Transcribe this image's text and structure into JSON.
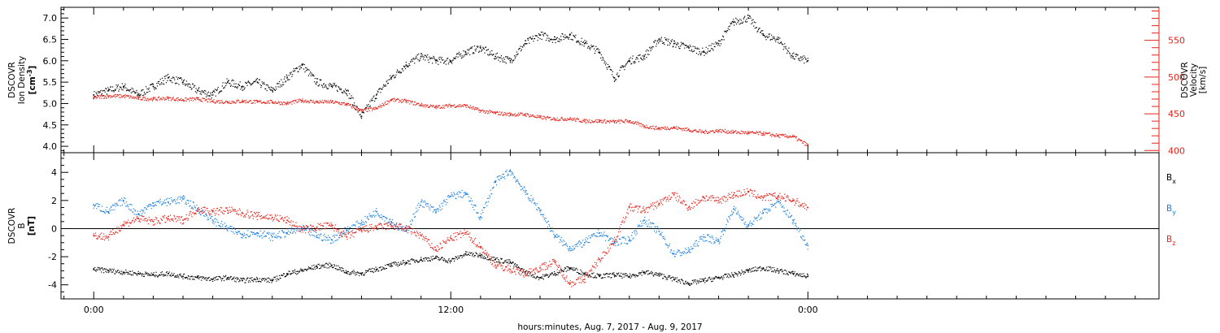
{
  "chart_data": [
    {
      "type": "scatter",
      "panel": "top",
      "ylabel_left": [
        "DSCOVR",
        "Ion Density",
        "[cm",
        "-3",
        "]"
      ],
      "ylabel_right": [
        "DSCOVR",
        "Velocity",
        "[km/s]"
      ],
      "ylim_left": [
        3.85,
        7.25
      ],
      "ylim_right": [
        397,
        595
      ],
      "yticks_left": [
        "4.0",
        "4.5",
        "5.0",
        "5.5",
        "6.0",
        "6.5",
        "7.0"
      ],
      "yticks_right": [
        "400",
        "450",
        "500",
        "550"
      ],
      "series": [
        {
          "color": "#000000",
          "axis": "left",
          "x": [
            0.0,
            0.5,
            1.0,
            1.5,
            2.0,
            2.5,
            3.0,
            3.5,
            4.0,
            4.5,
            5.0,
            5.5,
            6.0,
            6.5,
            7.0,
            7.5,
            8.0,
            8.5,
            9.0,
            9.5,
            10.0,
            10.5,
            11.0,
            11.5,
            12.0,
            12.5,
            13.0,
            13.5,
            14.0,
            14.5,
            15.0,
            15.5,
            16.0,
            16.5,
            17.0,
            17.5,
            18.0,
            18.5,
            19.0,
            19.5,
            20.0,
            20.5,
            21.0,
            21.5,
            22.0,
            22.5,
            23.0,
            23.5,
            24.0
          ],
          "y": [
            5.2,
            5.3,
            5.4,
            5.2,
            5.4,
            5.6,
            5.5,
            5.3,
            5.2,
            5.5,
            5.4,
            5.5,
            5.3,
            5.6,
            5.9,
            5.5,
            5.4,
            5.3,
            4.7,
            5.2,
            5.6,
            5.9,
            6.1,
            6.0,
            6.0,
            6.2,
            6.3,
            6.1,
            6.0,
            6.4,
            6.6,
            6.5,
            6.6,
            6.4,
            6.2,
            5.6,
            6.0,
            6.1,
            6.5,
            6.4,
            6.3,
            6.2,
            6.4,
            6.9,
            7.0,
            6.6,
            6.5,
            6.1,
            6.0
          ]
        },
        {
          "color": "#e8211a",
          "axis": "right",
          "x": [
            0.0,
            0.5,
            1.0,
            1.5,
            2.0,
            2.5,
            3.0,
            3.5,
            4.0,
            4.5,
            5.0,
            5.5,
            6.0,
            6.5,
            7.0,
            7.5,
            8.0,
            8.5,
            9.0,
            9.5,
            10.0,
            10.5,
            11.0,
            11.5,
            12.0,
            12.5,
            13.0,
            13.5,
            14.0,
            14.5,
            15.0,
            15.5,
            16.0,
            16.5,
            17.0,
            17.5,
            18.0,
            18.5,
            19.0,
            19.5,
            20.0,
            20.5,
            21.0,
            21.5,
            22.0,
            22.5,
            23.0,
            23.5,
            24.0
          ],
          "y": [
            472,
            474,
            474,
            471,
            470,
            471,
            469,
            470,
            467,
            466,
            467,
            466,
            466,
            464,
            468,
            466,
            466,
            463,
            454,
            457,
            469,
            467,
            462,
            459,
            461,
            461,
            454,
            451,
            449,
            449,
            445,
            443,
            443,
            440,
            440,
            439,
            440,
            433,
            430,
            431,
            428,
            425,
            427,
            425,
            424,
            423,
            420,
            419,
            407
          ]
        }
      ]
    },
    {
      "type": "scatter",
      "panel": "bottom",
      "ylabel": [
        "DSCOVR",
        "B",
        "[nT]"
      ],
      "ylim": [
        -5,
        5.4
      ],
      "yticks": [
        "-4",
        "-2",
        "0",
        "2",
        "4"
      ],
      "legend": [
        "B",
        "B",
        "B"
      ],
      "legend_subscripts": [
        "x",
        "y",
        "z"
      ],
      "series": [
        {
          "color": "#000000",
          "x": [
            0.0,
            0.5,
            1.0,
            1.5,
            2.0,
            2.5,
            3.0,
            3.5,
            4.0,
            4.5,
            5.0,
            5.5,
            6.0,
            6.5,
            7.0,
            7.5,
            8.0,
            8.5,
            9.0,
            9.5,
            10.0,
            10.5,
            11.0,
            11.5,
            12.0,
            12.5,
            13.0,
            13.5,
            14.0,
            14.5,
            15.0,
            15.5,
            16.0,
            16.5,
            17.0,
            17.5,
            18.0,
            18.5,
            19.0,
            19.5,
            20.0,
            20.5,
            21.0,
            21.5,
            22.0,
            22.5,
            23.0,
            23.5,
            24.0
          ],
          "y": [
            -2.9,
            -3.0,
            -3.1,
            -3.2,
            -3.3,
            -3.2,
            -3.4,
            -3.5,
            -3.6,
            -3.5,
            -3.7,
            -3.6,
            -3.7,
            -3.2,
            -3.0,
            -2.7,
            -2.6,
            -3.1,
            -3.2,
            -2.9,
            -2.6,
            -2.4,
            -2.2,
            -2.1,
            -2.3,
            -1.8,
            -1.9,
            -2.2,
            -2.4,
            -3.1,
            -3.5,
            -3.2,
            -2.8,
            -3.2,
            -3.4,
            -3.3,
            -3.4,
            -3.1,
            -3.3,
            -3.6,
            -3.9,
            -3.7,
            -3.5,
            -3.3,
            -3.0,
            -2.8,
            -3.0,
            -3.2,
            -3.4
          ]
        },
        {
          "color": "#1a7fe0",
          "x": [
            0.0,
            0.5,
            1.0,
            1.5,
            2.0,
            2.5,
            3.0,
            3.5,
            4.0,
            4.5,
            5.0,
            5.5,
            6.0,
            6.5,
            7.0,
            7.5,
            8.0,
            8.5,
            9.0,
            9.5,
            10.0,
            10.5,
            11.0,
            11.5,
            12.0,
            12.5,
            13.0,
            13.5,
            14.0,
            14.5,
            15.0,
            15.5,
            16.0,
            16.5,
            17.0,
            17.5,
            18.0,
            18.5,
            19.0,
            19.5,
            20.0,
            20.5,
            21.0,
            21.5,
            22.0,
            22.5,
            23.0,
            23.5,
            24.0
          ],
          "y": [
            1.7,
            1.2,
            2.0,
            1.0,
            1.8,
            1.9,
            2.1,
            1.4,
            0.6,
            0.0,
            -0.4,
            -0.3,
            -0.6,
            -0.3,
            0.0,
            -0.5,
            -0.8,
            -0.1,
            0.4,
            1.2,
            0.5,
            -0.2,
            1.9,
            1.2,
            2.3,
            2.5,
            0.8,
            3.3,
            4.1,
            2.6,
            1.3,
            -0.5,
            -1.4,
            -1.0,
            -0.3,
            -1.0,
            -0.8,
            0.6,
            -0.2,
            -1.8,
            -1.6,
            -0.6,
            -0.9,
            1.4,
            0.2,
            1.1,
            1.9,
            0.6,
            -1.2
          ]
        },
        {
          "color": "#e8211a",
          "x": [
            0.0,
            0.5,
            1.0,
            1.5,
            2.0,
            2.5,
            3.0,
            3.5,
            4.0,
            4.5,
            5.0,
            5.5,
            6.0,
            6.5,
            7.0,
            7.5,
            8.0,
            8.5,
            9.0,
            9.5,
            10.0,
            10.5,
            11.0,
            11.5,
            12.0,
            12.5,
            13.0,
            13.5,
            14.0,
            14.5,
            15.0,
            15.5,
            16.0,
            16.5,
            17.0,
            17.5,
            18.0,
            18.5,
            19.0,
            19.5,
            20.0,
            20.5,
            21.0,
            21.5,
            22.0,
            22.5,
            23.0,
            23.5,
            24.0
          ],
          "y": [
            -0.5,
            -0.6,
            0.3,
            0.7,
            0.5,
            0.7,
            0.6,
            1.4,
            1.2,
            1.3,
            1.1,
            0.9,
            0.8,
            0.6,
            -0.1,
            0.1,
            0.2,
            -0.6,
            -0.1,
            0.1,
            0.2,
            0.0,
            -0.5,
            -1.5,
            -0.7,
            -0.3,
            -1.3,
            -2.6,
            -2.9,
            -3.2,
            -2.8,
            -2.4,
            -3.9,
            -3.6,
            -2.2,
            -0.9,
            1.5,
            1.3,
            1.8,
            2.4,
            1.5,
            2.2,
            2.0,
            2.4,
            2.6,
            2.2,
            2.3,
            2.0,
            1.5
          ]
        }
      ]
    }
  ],
  "xaxis": {
    "label": "hours:minutes, Aug.  7, 2017 - Aug.  9, 2017",
    "range_hours": [
      -1.1,
      35.8
    ],
    "ticks": [
      {
        "hour": 0,
        "label": "0:00"
      },
      {
        "hour": 12,
        "label": "12:00"
      },
      {
        "hour": 24,
        "label": "0:00"
      }
    ]
  }
}
